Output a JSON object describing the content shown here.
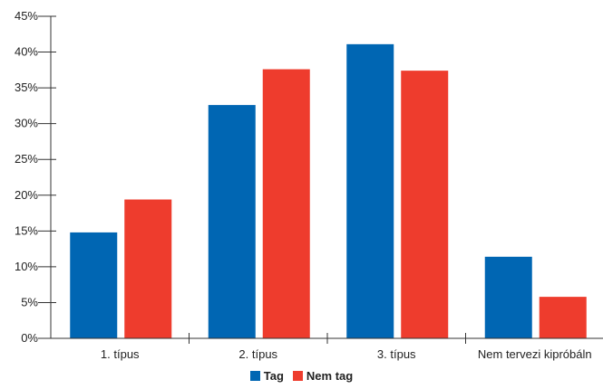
{
  "chart_data": {
    "type": "bar",
    "categories": [
      "1. típus",
      "2. típus",
      "3. típus",
      "Nem tervezi kipróbáln"
    ],
    "series": [
      {
        "name": "Tag",
        "color": "#0066b3",
        "values": [
          14.8,
          32.6,
          41.1,
          11.4
        ]
      },
      {
        "name": "Nem tag",
        "color": "#ee3c2d",
        "values": [
          19.4,
          37.6,
          37.4,
          5.8
        ]
      }
    ],
    "yticks": [
      "0%",
      "5%",
      "10%",
      "15%",
      "20%",
      "25%",
      "30%",
      "35%",
      "40%",
      "45%"
    ],
    "ylim": [
      0,
      45
    ],
    "ystep": 5,
    "title": "",
    "xlabel": "",
    "ylabel": "",
    "grid": false,
    "legend_position": "bottom-center"
  }
}
